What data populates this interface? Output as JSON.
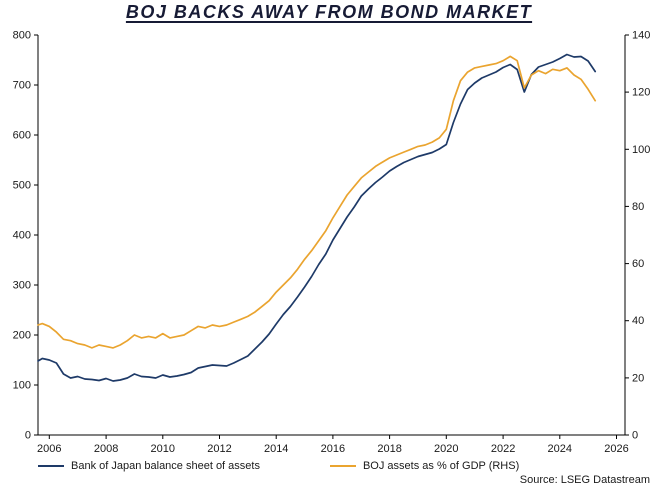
{
  "colors": {
    "axis": "#000000",
    "tick_text": "#1a1a1a",
    "title": "#171b35",
    "navy": "#1e3a68",
    "orange": "#eaa42f"
  },
  "chart_data": {
    "type": "line",
    "title": "BOJ BACKS AWAY FROM BOND MARKET",
    "source_text": "Source: LSEG Datastream",
    "grid": false,
    "legend_position": "bottom",
    "x_range": [
      2005.6,
      2026.3
    ],
    "x_ticks": [
      2006,
      2008,
      2010,
      2012,
      2014,
      2016,
      2018,
      2020,
      2022,
      2024,
      2026
    ],
    "left_axis": {
      "range": [
        0,
        800
      ],
      "ticks": [
        0,
        100,
        200,
        300,
        400,
        500,
        600,
        700,
        800
      ]
    },
    "right_axis": {
      "range": [
        0,
        140
      ],
      "ticks": [
        0,
        20,
        40,
        60,
        80,
        100,
        120,
        140
      ]
    },
    "x": [
      2005.6,
      2005.75,
      2006,
      2006.25,
      2006.5,
      2006.75,
      2007,
      2007.25,
      2007.5,
      2007.75,
      2008,
      2008.25,
      2008.5,
      2008.75,
      2009,
      2009.25,
      2009.5,
      2009.75,
      2010,
      2010.25,
      2010.5,
      2010.75,
      2011,
      2011.25,
      2011.5,
      2011.75,
      2012,
      2012.25,
      2012.5,
      2012.75,
      2013,
      2013.25,
      2013.5,
      2013.75,
      2014,
      2014.25,
      2014.5,
      2014.75,
      2015,
      2015.25,
      2015.5,
      2015.75,
      2016,
      2016.25,
      2016.5,
      2016.75,
      2017,
      2017.25,
      2017.5,
      2017.75,
      2018,
      2018.25,
      2018.5,
      2018.75,
      2019,
      2019.25,
      2019.5,
      2019.75,
      2020,
      2020.25,
      2020.5,
      2020.75,
      2021,
      2021.25,
      2021.5,
      2021.75,
      2022,
      2022.25,
      2022.5,
      2022.75,
      2023,
      2023.25,
      2023.5,
      2023.75,
      2024,
      2024.25,
      2024.5,
      2024.75,
      2025,
      2025.25
    ],
    "series": [
      {
        "name": "Bank of Japan balance sheet of assets",
        "axis": "left",
        "color": "#1e3a68",
        "values": [
          148,
          153,
          150,
          144,
          122,
          114,
          117,
          112,
          111,
          109,
          113,
          108,
          110,
          114,
          122,
          117,
          116,
          114,
          120,
          116,
          118,
          121,
          125,
          134,
          137,
          140,
          139,
          138,
          144,
          151,
          158,
          172,
          186,
          202,
          222,
          241,
          257,
          276,
          296,
          317,
          341,
          362,
          390,
          413,
          436,
          456,
          478,
          492,
          505,
          516,
          528,
          537,
          545,
          551,
          557,
          561,
          565,
          572,
          581,
          625,
          662,
          691,
          704,
          714,
          720,
          726,
          735,
          741,
          731,
          686,
          721,
          736,
          741,
          746,
          753,
          761,
          756,
          757,
          748,
          727
        ]
      },
      {
        "name": "BOJ assets as % of GDP (RHS)",
        "axis": "right",
        "color": "#eaa42f",
        "values": [
          38.5,
          39,
          38,
          36,
          33.5,
          33,
          32,
          31.5,
          30.5,
          31.5,
          31,
          30.5,
          31.5,
          33,
          35,
          34,
          34.5,
          34,
          35.5,
          34,
          34.5,
          35,
          36.5,
          38,
          37.5,
          38.5,
          38,
          38.5,
          39.5,
          40.5,
          41.5,
          43,
          45,
          47,
          50,
          52.5,
          55,
          58,
          61.5,
          64.5,
          68,
          71.5,
          76,
          80,
          84,
          87,
          90,
          92,
          94,
          95.5,
          97,
          98,
          99,
          100,
          101,
          101.5,
          102.5,
          104,
          107,
          117,
          124,
          127,
          128.5,
          129,
          129.5,
          130,
          131,
          132.5,
          131,
          121.5,
          126,
          127.5,
          126.5,
          128,
          127.5,
          128.5,
          126,
          124.5,
          121,
          117
        ]
      }
    ]
  }
}
